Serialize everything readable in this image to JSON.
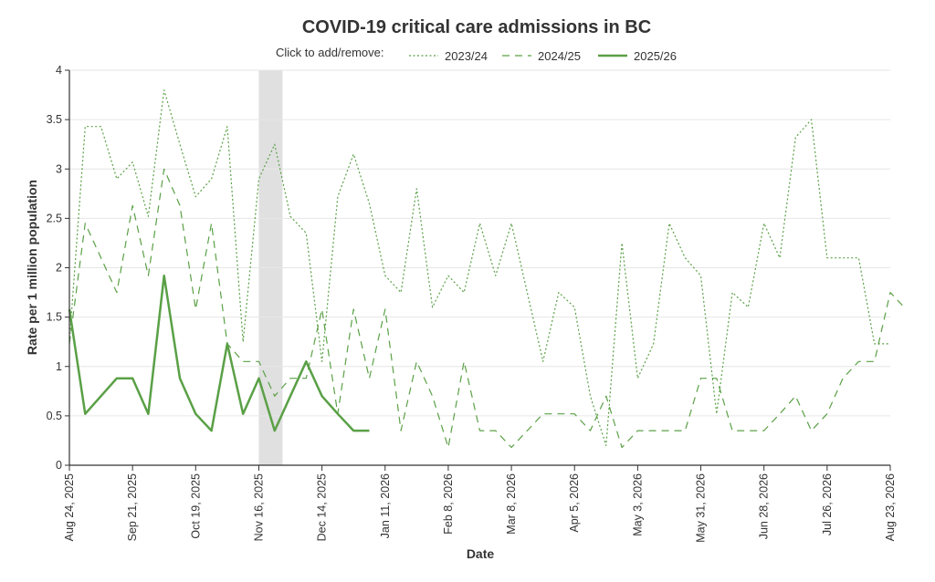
{
  "chart_data": {
    "type": "line",
    "title": "COVID-19 critical care admissions in BC",
    "legend_prompt": "Click to add/remove:",
    "xlabel": "Date",
    "ylabel": "Rate per 1 million population",
    "ylim": [
      0,
      4
    ],
    "y_ticks": [
      "0",
      "0.5",
      "1",
      "1.5",
      "2",
      "2.5",
      "3",
      "3.5",
      "4"
    ],
    "x_ticks": [
      "Aug 24, 2025",
      "Sep 21, 2025",
      "Oct 19, 2025",
      "Nov 16, 2025",
      "Dec 14, 2025",
      "Jan 11, 2026",
      "Feb 8, 2026",
      "Mar 8, 2026",
      "Apr 5, 2026",
      "May 3, 2026",
      "May 31, 2026",
      "Jun 28, 2026",
      "Jul 26, 2026",
      "Aug 23, 2026"
    ],
    "weeks_span": 52,
    "shaded_week_range": [
      12,
      13.5
    ],
    "colors": {
      "series": "#5aa046",
      "shade": "#e0e0e0",
      "grid": "#e6e6e6",
      "axis": "#333333"
    },
    "series": [
      {
        "name": "2023/24",
        "style": "dotted",
        "values": [
          1.25,
          3.43,
          3.43,
          2.9,
          3.07,
          2.52,
          3.8,
          3.25,
          2.72,
          2.9,
          3.43,
          1.25,
          2.9,
          3.25,
          2.52,
          2.35,
          1.05,
          2.72,
          3.15,
          2.65,
          1.92,
          1.75,
          2.8,
          1.6,
          1.92,
          1.75,
          2.45,
          1.92,
          2.45,
          1.75,
          1.05,
          1.75,
          1.6,
          0.7,
          0.2,
          2.25,
          0.88,
          1.23,
          2.45,
          2.1,
          1.92,
          0.52,
          1.75,
          1.6,
          2.45,
          2.1,
          3.32,
          3.5,
          2.1,
          2.1,
          2.1,
          1.23,
          1.23
        ]
      },
      {
        "name": "2024/25",
        "style": "dashed",
        "values": [
          1.23,
          2.45,
          2.1,
          1.75,
          2.63,
          1.92,
          3.0,
          2.63,
          1.58,
          2.45,
          1.23,
          1.05,
          1.05,
          0.7,
          0.88,
          0.88,
          1.58,
          0.52,
          1.58,
          0.88,
          1.58,
          0.35,
          1.05,
          0.7,
          0.18,
          1.05,
          0.35,
          0.35,
          0.18,
          0.35,
          0.52,
          0.52,
          0.52,
          0.35,
          0.7,
          0.18,
          0.35,
          0.35,
          0.35,
          0.35,
          0.88,
          0.88,
          0.35,
          0.35,
          0.35,
          0.52,
          0.7,
          0.35,
          0.52,
          0.88,
          1.05,
          1.05,
          1.75,
          1.58
        ]
      },
      {
        "name": "2025/26",
        "style": "solid",
        "values": [
          1.58,
          0.52,
          0.7,
          0.88,
          0.88,
          0.52,
          1.92,
          0.88,
          0.52,
          0.35,
          1.23,
          0.52,
          0.88,
          0.35,
          0.7,
          1.05,
          0.7,
          0.52,
          0.35,
          0.35
        ]
      }
    ]
  }
}
